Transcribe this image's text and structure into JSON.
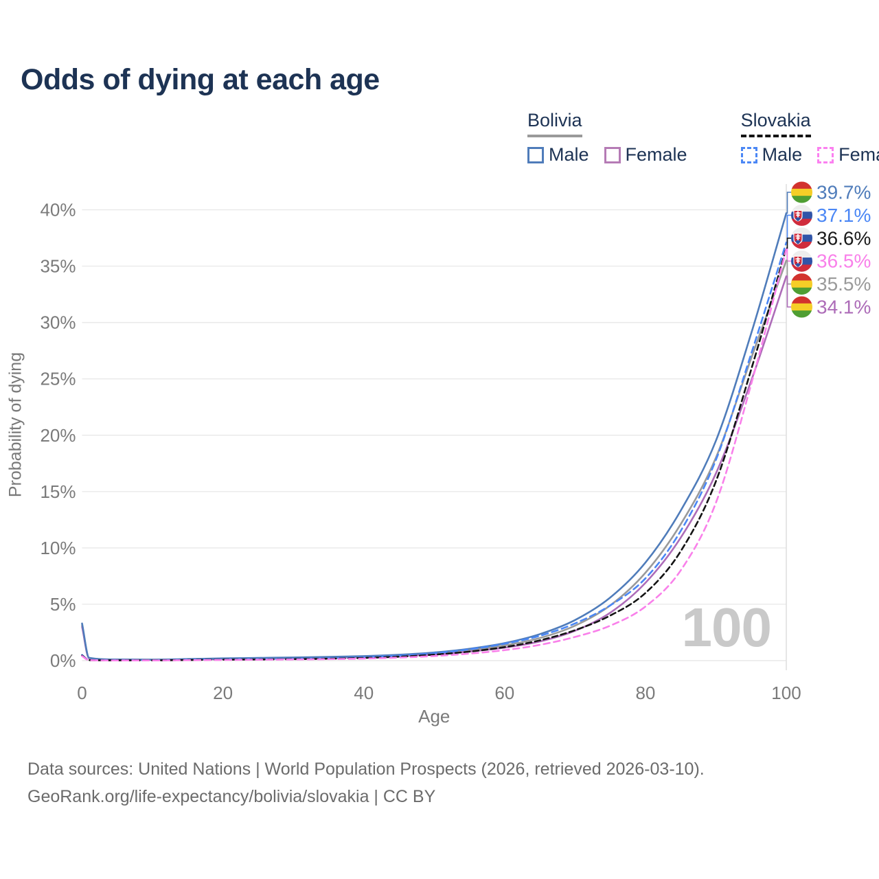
{
  "title": "Odds of dying at each age",
  "legend": {
    "groups": [
      {
        "country": "Bolivia",
        "line_style": "solid",
        "underline_color": "#9a9a9a",
        "items": [
          {
            "label": "Male",
            "color": "#4f7cba",
            "dashed": false
          },
          {
            "label": "Female",
            "color": "#b57bb5",
            "dashed": false
          }
        ]
      },
      {
        "country": "Slovakia",
        "line_style": "dashed",
        "underline_color": "#141414",
        "items": [
          {
            "label": "Male",
            "color": "#4b87f5",
            "dashed": true
          },
          {
            "label": "Female",
            "color": "#fb80f0",
            "dashed": true
          }
        ]
      }
    ]
  },
  "watermark": "100",
  "footer": {
    "line1": "Data sources: United Nations | World Population Prospects (2026, retrieved 2026-03-10).",
    "line2": "GeoRank.org/life-expectancy/bolivia/slovakia | CC BY"
  },
  "chart_data": {
    "type": "line",
    "title": "Odds of dying at each age",
    "xlabel": "Age",
    "ylabel": "Probability of dying",
    "xlim": [
      0,
      100
    ],
    "ylim": [
      0,
      40
    ],
    "grid": "horizontal",
    "x_ticks": [
      {
        "v": 0,
        "label": "0"
      },
      {
        "v": 20,
        "label": "20"
      },
      {
        "v": 40,
        "label": "40"
      },
      {
        "v": 60,
        "label": "60"
      },
      {
        "v": 80,
        "label": "80"
      },
      {
        "v": 100,
        "label": "100"
      }
    ],
    "y_ticks": [
      {
        "v": 0,
        "label": "0%"
      },
      {
        "v": 5,
        "label": "5%"
      },
      {
        "v": 10,
        "label": "10%"
      },
      {
        "v": 15,
        "label": "15%"
      },
      {
        "v": 20,
        "label": "20%"
      },
      {
        "v": 25,
        "label": "25%"
      },
      {
        "v": 30,
        "label": "30%"
      },
      {
        "v": 35,
        "label": "35%"
      },
      {
        "v": 40,
        "label": "40%"
      }
    ],
    "x": [
      0,
      1,
      5,
      10,
      15,
      20,
      25,
      30,
      35,
      40,
      45,
      50,
      55,
      60,
      65,
      70,
      75,
      80,
      85,
      90,
      95,
      100
    ],
    "series": [
      {
        "name": "Bolivia Both sexes",
        "country": "bolivia",
        "sex": "both",
        "color": "#9a9a9a",
        "dash": null,
        "end_value": 35.5,
        "end_label": "35.5%",
        "label_color": "#9a9a9a",
        "values": [
          3.15,
          0.22,
          0.09,
          0.08,
          0.12,
          0.17,
          0.2,
          0.24,
          0.29,
          0.36,
          0.46,
          0.63,
          0.92,
          1.35,
          2.0,
          3.1,
          4.9,
          7.8,
          12.1,
          18.0,
          26.8,
          35.5
        ]
      },
      {
        "name": "Bolivia Female",
        "country": "bolivia",
        "sex": "female",
        "color": "#ad6cb8",
        "dash": null,
        "end_value": 34.1,
        "end_label": "34.1%",
        "label_color": "#ad6cb8",
        "values": [
          3.0,
          0.2,
          0.08,
          0.07,
          0.1,
          0.14,
          0.17,
          0.2,
          0.25,
          0.31,
          0.4,
          0.55,
          0.8,
          1.15,
          1.7,
          2.65,
          4.25,
          6.9,
          10.9,
          16.6,
          24.8,
          34.1
        ]
      },
      {
        "name": "Bolivia Male",
        "country": "bolivia",
        "sex": "male",
        "color": "#4f7cba",
        "dash": null,
        "end_value": 39.7,
        "end_label": "39.7%",
        "label_color": "#4f7cba",
        "values": [
          3.3,
          0.25,
          0.1,
          0.09,
          0.14,
          0.2,
          0.24,
          0.28,
          0.33,
          0.4,
          0.52,
          0.72,
          1.05,
          1.55,
          2.35,
          3.6,
          5.6,
          8.7,
          13.3,
          19.5,
          29.0,
          39.7
        ]
      },
      {
        "name": "Slovakia Male",
        "country": "slovakia",
        "sex": "male",
        "color": "#4b87f5",
        "dash": "9 6",
        "end_value": 37.1,
        "end_label": "37.1%",
        "label_color": "#4b87f5",
        "values": [
          0.5,
          0.05,
          0.03,
          0.03,
          0.07,
          0.11,
          0.13,
          0.16,
          0.21,
          0.3,
          0.44,
          0.66,
          1.0,
          1.5,
          2.2,
          3.3,
          4.9,
          7.3,
          11.5,
          17.8,
          27.2,
          37.1
        ]
      },
      {
        "name": "Slovakia Both sexes",
        "country": "slovakia",
        "sex": "both",
        "color": "#141414",
        "dash": "8 5",
        "end_value": 36.6,
        "end_label": "36.6%",
        "label_color": "#1a1a1a",
        "values": [
          0.45,
          0.045,
          0.025,
          0.025,
          0.055,
          0.085,
          0.1,
          0.13,
          0.17,
          0.24,
          0.35,
          0.53,
          0.8,
          1.2,
          1.8,
          2.7,
          4.0,
          6.0,
          9.7,
          15.9,
          25.8,
          36.6
        ]
      },
      {
        "name": "Slovakia Female",
        "country": "slovakia",
        "sex": "female",
        "color": "#f980ea",
        "dash": "9 6",
        "end_value": 36.5,
        "end_label": "36.5%",
        "label_color": "#f980ea",
        "values": [
          0.4,
          0.04,
          0.02,
          0.02,
          0.04,
          0.06,
          0.08,
          0.1,
          0.13,
          0.18,
          0.27,
          0.41,
          0.62,
          0.93,
          1.4,
          2.1,
          3.1,
          4.8,
          8.0,
          14.0,
          24.5,
          36.5
        ]
      }
    ],
    "flag_colors": {
      "bolivia": [
        "#d2322e",
        "#f5ce27",
        "#4f9e33"
      ],
      "slovakia": [
        "#ededed",
        "#3054a8",
        "#d02c3c"
      ]
    }
  }
}
